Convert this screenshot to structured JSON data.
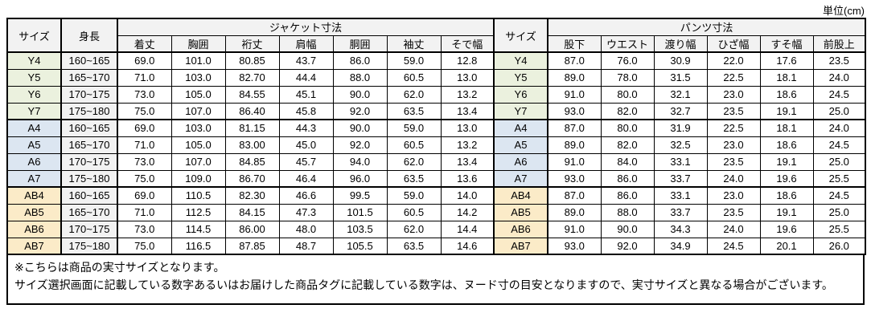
{
  "unit_label": "単位(cm)",
  "colors": {
    "group_Y": "#EBF1DE",
    "group_A": "#DCE6F1",
    "group_AB": "#FBEBC8",
    "header_bg": "#F2F2F2",
    "height_col_bg": "#F2F2F2",
    "border": "#000000"
  },
  "table": {
    "col_headers": {
      "size": "サイズ",
      "height": "身長",
      "jacket_group": "ジャケット寸法",
      "jacket_cols": [
        "着丈",
        "胸囲",
        "裄丈",
        "肩幅",
        "胴囲",
        "袖丈",
        "そで幅"
      ],
      "size2": "サイズ",
      "pants_group": "パンツ寸法",
      "pants_cols": [
        "股下",
        "ウエスト",
        "渡り幅",
        "ひざ幅",
        "すそ幅",
        "前股上"
      ]
    },
    "rows": [
      {
        "size": "Y4",
        "group": "Y",
        "height": "160~165",
        "jacket": [
          "69.0",
          "101.0",
          "80.85",
          "43.7",
          "86.0",
          "59.0",
          "12.8"
        ],
        "pants": [
          "87.0",
          "76.0",
          "30.9",
          "22.0",
          "17.6",
          "23.5"
        ]
      },
      {
        "size": "Y5",
        "group": "Y",
        "height": "165~170",
        "jacket": [
          "71.0",
          "103.0",
          "82.70",
          "44.4",
          "88.0",
          "60.5",
          "13.0"
        ],
        "pants": [
          "89.0",
          "78.0",
          "31.5",
          "22.5",
          "18.1",
          "24.0"
        ]
      },
      {
        "size": "Y6",
        "group": "Y",
        "height": "170~175",
        "jacket": [
          "73.0",
          "105.0",
          "84.55",
          "45.1",
          "90.0",
          "62.0",
          "13.2"
        ],
        "pants": [
          "91.0",
          "80.0",
          "32.1",
          "23.0",
          "18.6",
          "24.5"
        ]
      },
      {
        "size": "Y7",
        "group": "Y",
        "height": "175~180",
        "jacket": [
          "75.0",
          "107.0",
          "86.40",
          "45.8",
          "92.0",
          "63.5",
          "13.4"
        ],
        "pants": [
          "93.0",
          "82.0",
          "32.7",
          "23.5",
          "19.1",
          "25.0"
        ]
      },
      {
        "size": "A4",
        "group": "A",
        "height": "160~165",
        "jacket": [
          "69.0",
          "103.0",
          "81.15",
          "44.3",
          "90.0",
          "59.0",
          "13.0"
        ],
        "pants": [
          "87.0",
          "80.0",
          "31.9",
          "22.5",
          "18.1",
          "24.0"
        ]
      },
      {
        "size": "A5",
        "group": "A",
        "height": "165~170",
        "jacket": [
          "71.0",
          "105.0",
          "83.00",
          "45.0",
          "92.0",
          "60.5",
          "13.2"
        ],
        "pants": [
          "89.0",
          "82.0",
          "32.5",
          "23.0",
          "18.6",
          "24.5"
        ]
      },
      {
        "size": "A6",
        "group": "A",
        "height": "170~175",
        "jacket": [
          "73.0",
          "107.0",
          "84.85",
          "45.7",
          "94.0",
          "62.0",
          "13.4"
        ],
        "pants": [
          "91.0",
          "84.0",
          "33.1",
          "23.5",
          "19.1",
          "25.0"
        ]
      },
      {
        "size": "A7",
        "group": "A",
        "height": "175~180",
        "jacket": [
          "75.0",
          "109.0",
          "86.70",
          "46.4",
          "96.0",
          "63.5",
          "13.6"
        ],
        "pants": [
          "93.0",
          "86.0",
          "33.7",
          "24.0",
          "19.6",
          "25.5"
        ]
      },
      {
        "size": "AB4",
        "group": "AB",
        "height": "160~165",
        "jacket": [
          "69.0",
          "110.5",
          "82.30",
          "46.6",
          "99.5",
          "59.0",
          "14.0"
        ],
        "pants": [
          "87.0",
          "86.0",
          "33.1",
          "23.0",
          "18.6",
          "24.5"
        ]
      },
      {
        "size": "AB5",
        "group": "AB",
        "height": "165~170",
        "jacket": [
          "71.0",
          "112.5",
          "84.15",
          "47.3",
          "101.5",
          "60.5",
          "14.2"
        ],
        "pants": [
          "89.0",
          "88.0",
          "33.7",
          "23.5",
          "19.1",
          "25.0"
        ]
      },
      {
        "size": "AB6",
        "group": "AB",
        "height": "170~175",
        "jacket": [
          "73.0",
          "114.5",
          "86.00",
          "48.0",
          "103.5",
          "62.0",
          "14.4"
        ],
        "pants": [
          "91.0",
          "90.0",
          "34.3",
          "24.0",
          "19.6",
          "25.5"
        ]
      },
      {
        "size": "AB7",
        "group": "AB",
        "height": "175~180",
        "jacket": [
          "75.0",
          "116.5",
          "87.85",
          "48.7",
          "105.5",
          "63.5",
          "14.6"
        ],
        "pants": [
          "93.0",
          "92.0",
          "34.9",
          "24.5",
          "20.1",
          "26.0"
        ]
      }
    ]
  },
  "notes": {
    "line1": "※こちらは商品の実寸サイズとなります。",
    "line2": "サイズ選択画面に記載している数字あるいはお届けした商品タグに記載している数字は、ヌード寸の目安となりますので、実寸サイズと異なる場合がございます。"
  }
}
